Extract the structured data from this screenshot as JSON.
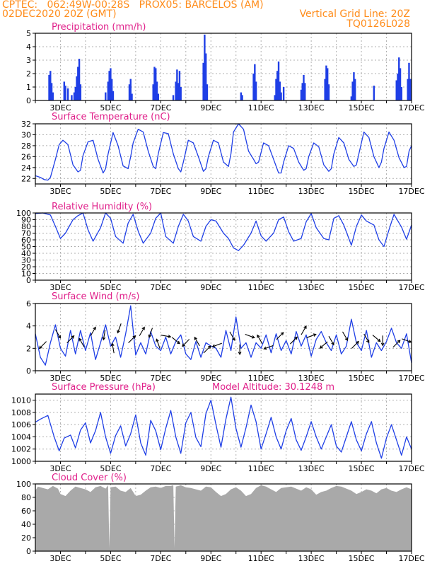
{
  "header": {
    "line1": "CPTEC:   062:49W-00:28S   PROX05: BARCELOS (AM)",
    "line2": "02DEC2020 20Z (GMT)",
    "grid_note": "Vertical Grid Line: 20Z",
    "code": "TQ0126L028"
  },
  "colors": {
    "header": "#ff8c1a",
    "title": "#e0208a",
    "series": "#1f3fe6",
    "cloud": "#a9a9a9",
    "grid": "#b0b0b0"
  },
  "chart_data": [
    {
      "type": "bar",
      "title": "Precipitation (mm/h)",
      "ylim": [
        0,
        5
      ],
      "yticks": [
        0,
        1,
        2,
        3,
        4,
        5
      ],
      "xticks": [
        "3DEC",
        "5DEC",
        "7DEC",
        "9DEC",
        "11DEC",
        "13DEC",
        "15DEC",
        "17DEC"
      ],
      "x_start_day": 2.0,
      "x_end_day": 17.0,
      "bars": [
        [
          2.55,
          1.9
        ],
        [
          2.6,
          2.2
        ],
        [
          2.65,
          1.3
        ],
        [
          2.7,
          0.6
        ],
        [
          3.15,
          1.4
        ],
        [
          3.2,
          1.1
        ],
        [
          3.3,
          0.9
        ],
        [
          3.45,
          0.4
        ],
        [
          3.55,
          0.6
        ],
        [
          3.6,
          1.0
        ],
        [
          3.65,
          1.8
        ],
        [
          3.7,
          2.5
        ],
        [
          3.75,
          3.1
        ],
        [
          3.8,
          1.2
        ],
        [
          4.8,
          0.6
        ],
        [
          4.9,
          1.4
        ],
        [
          4.95,
          2.2
        ],
        [
          5.0,
          2.4
        ],
        [
          5.05,
          1.6
        ],
        [
          5.1,
          0.7
        ],
        [
          5.75,
          1.2
        ],
        [
          5.8,
          1.6
        ],
        [
          5.85,
          0.5
        ],
        [
          6.7,
          1.2
        ],
        [
          6.75,
          2.5
        ],
        [
          6.8,
          2.4
        ],
        [
          6.85,
          1.4
        ],
        [
          6.9,
          0.5
        ],
        [
          7.5,
          0.4
        ],
        [
          7.6,
          1.4
        ],
        [
          7.65,
          2.3
        ],
        [
          7.7,
          1.3
        ],
        [
          7.75,
          2.2
        ],
        [
          7.8,
          1.0
        ],
        [
          8.7,
          2.8
        ],
        [
          8.75,
          4.9
        ],
        [
          8.8,
          3.5
        ],
        [
          8.85,
          1.2
        ],
        [
          10.2,
          0.6
        ],
        [
          10.25,
          0.4
        ],
        [
          10.7,
          2.0
        ],
        [
          10.75,
          2.7
        ],
        [
          10.8,
          1.4
        ],
        [
          11.55,
          0.4
        ],
        [
          11.6,
          1.6
        ],
        [
          11.65,
          2.2
        ],
        [
          11.7,
          2.9
        ],
        [
          11.75,
          1.4
        ],
        [
          11.8,
          0.6
        ],
        [
          11.9,
          1.0
        ],
        [
          12.6,
          0.8
        ],
        [
          12.65,
          1.3
        ],
        [
          12.7,
          1.9
        ],
        [
          12.75,
          1.3
        ],
        [
          13.55,
          1.6
        ],
        [
          13.6,
          2.6
        ],
        [
          13.65,
          2.4
        ],
        [
          13.7,
          1.2
        ],
        [
          14.6,
          0.3
        ],
        [
          14.65,
          1.4
        ],
        [
          14.7,
          2.1
        ],
        [
          14.75,
          1.6
        ],
        [
          15.5,
          1.1
        ],
        [
          16.4,
          1.5
        ],
        [
          16.45,
          2.0
        ],
        [
          16.5,
          3.2
        ],
        [
          16.55,
          2.4
        ],
        [
          16.6,
          1.0
        ],
        [
          16.85,
          1.6
        ],
        [
          16.9,
          2.8
        ],
        [
          16.95,
          1.6
        ]
      ]
    },
    {
      "type": "line",
      "title": "Surface Temperature (nC)",
      "ylim": [
        21,
        32
      ],
      "yticks": [
        22,
        24,
        26,
        28,
        30,
        32
      ],
      "xticks": [
        "3DEC",
        "5DEC",
        "7DEC",
        "9DEC",
        "11DEC",
        "13DEC",
        "15DEC",
        "17DEC"
      ],
      "x_start_day": 2.0,
      "x_end_day": 17.0,
      "x": [
        2.0,
        2.2,
        2.35,
        2.5,
        2.6,
        2.8,
        2.95,
        3.1,
        3.3,
        3.5,
        3.7,
        3.8,
        3.9,
        4.1,
        4.3,
        4.5,
        4.7,
        4.8,
        4.9,
        5.1,
        5.3,
        5.5,
        5.7,
        5.8,
        5.9,
        6.1,
        6.3,
        6.5,
        6.7,
        6.8,
        6.9,
        7.1,
        7.3,
        7.5,
        7.7,
        7.8,
        7.9,
        8.1,
        8.3,
        8.5,
        8.7,
        8.8,
        8.9,
        9.1,
        9.3,
        9.5,
        9.7,
        9.8,
        9.9,
        10.1,
        10.3,
        10.5,
        10.7,
        10.8,
        10.9,
        11.1,
        11.3,
        11.5,
        11.7,
        11.8,
        11.9,
        12.1,
        12.3,
        12.5,
        12.7,
        12.8,
        12.9,
        13.1,
        13.3,
        13.5,
        13.7,
        13.8,
        13.9,
        14.1,
        14.3,
        14.5,
        14.7,
        14.8,
        14.9,
        15.1,
        15.3,
        15.5,
        15.7,
        15.8,
        15.9,
        16.1,
        16.3,
        16.5,
        16.7,
        16.8,
        16.9,
        17.0
      ],
      "values": [
        22.5,
        22.2,
        21.8,
        21.7,
        22.2,
        25.5,
        28.2,
        29.0,
        28.2,
        24.5,
        23.2,
        23.5,
        26.2,
        28.7,
        29.0,
        25.5,
        23.0,
        23.8,
        26.5,
        30.4,
        28.0,
        24.3,
        23.8,
        26.0,
        28.5,
        31.0,
        30.5,
        27.0,
        24.2,
        23.8,
        26.5,
        30.4,
        30.2,
        26.5,
        23.8,
        23.2,
        25.0,
        29.0,
        28.5,
        26.0,
        23.3,
        23.8,
        26.0,
        29.0,
        28.5,
        25.0,
        24.2,
        26.5,
        30.5,
        32.0,
        31.0,
        27.0,
        25.5,
        24.7,
        25.0,
        28.5,
        28.0,
        25.5,
        23.0,
        23.0,
        25.0,
        28.0,
        27.5,
        25.0,
        23.5,
        23.8,
        26.0,
        28.5,
        27.8,
        24.5,
        23.3,
        23.8,
        26.5,
        29.5,
        28.5,
        25.5,
        24.2,
        24.5,
        26.5,
        30.5,
        29.5,
        26.0,
        24.0,
        25.0,
        27.5,
        30.5,
        29.0,
        25.8,
        24.0,
        24.2,
        27.0,
        28.0
      ]
    },
    {
      "type": "line",
      "title": "Relative Humidity (%)",
      "ylim": [
        0,
        100
      ],
      "yticks": [
        0,
        10,
        20,
        30,
        40,
        50,
        60,
        70,
        80,
        90,
        100
      ],
      "xticks": [
        "3DEC",
        "5DEC",
        "7DEC",
        "9DEC",
        "11DEC",
        "13DEC",
        "15DEC",
        "17DEC"
      ],
      "x_start_day": 2.0,
      "x_end_day": 17.0,
      "x": [
        2.0,
        2.3,
        2.6,
        2.8,
        3.0,
        3.2,
        3.5,
        3.7,
        3.9,
        4.1,
        4.3,
        4.6,
        4.8,
        5.0,
        5.2,
        5.5,
        5.7,
        5.9,
        6.1,
        6.3,
        6.6,
        6.8,
        7.0,
        7.2,
        7.5,
        7.7,
        7.9,
        8.1,
        8.3,
        8.6,
        8.8,
        9.0,
        9.2,
        9.5,
        9.7,
        9.9,
        10.1,
        10.3,
        10.6,
        10.8,
        11.0,
        11.2,
        11.5,
        11.7,
        11.9,
        12.1,
        12.3,
        12.6,
        12.8,
        13.0,
        13.2,
        13.5,
        13.7,
        13.9,
        14.1,
        14.3,
        14.6,
        14.8,
        15.0,
        15.2,
        15.5,
        15.7,
        15.9,
        16.1,
        16.3,
        16.6,
        16.8,
        17.0
      ],
      "values": [
        99,
        100,
        97,
        80,
        62,
        70,
        90,
        96,
        100,
        75,
        58,
        78,
        100,
        92,
        65,
        55,
        85,
        98,
        73,
        55,
        70,
        92,
        100,
        65,
        55,
        80,
        98,
        88,
        65,
        58,
        80,
        90,
        88,
        70,
        62,
        48,
        44,
        52,
        70,
        88,
        66,
        58,
        70,
        90,
        94,
        72,
        58,
        62,
        87,
        99,
        78,
        62,
        60,
        92,
        96,
        82,
        52,
        80,
        97,
        88,
        82,
        60,
        50,
        75,
        98,
        79,
        61,
        82
      ]
    },
    {
      "type": "line",
      "title": "Surface Wind (m/s)",
      "ylim": [
        0,
        6
      ],
      "yticks": [
        0,
        2,
        4,
        6
      ],
      "xticks": [
        "3DEC",
        "5DEC",
        "7DEC",
        "9DEC",
        "11DEC",
        "13DEC",
        "15DEC",
        "17DEC"
      ],
      "x_start_day": 2.0,
      "x_end_day": 17.0,
      "x": [
        2.0,
        2.2,
        2.4,
        2.6,
        2.8,
        3.0,
        3.2,
        3.4,
        3.6,
        3.8,
        4.0,
        4.2,
        4.4,
        4.6,
        4.8,
        5.0,
        5.2,
        5.4,
        5.6,
        5.8,
        6.0,
        6.2,
        6.4,
        6.6,
        6.8,
        7.0,
        7.2,
        7.4,
        7.6,
        7.8,
        8.0,
        8.2,
        8.4,
        8.6,
        8.8,
        9.0,
        9.2,
        9.4,
        9.6,
        9.8,
        10.0,
        10.2,
        10.4,
        10.6,
        10.8,
        11.0,
        11.2,
        11.4,
        11.6,
        11.8,
        12.0,
        12.2,
        12.4,
        12.6,
        12.8,
        13.0,
        13.2,
        13.4,
        13.6,
        13.8,
        14.0,
        14.2,
        14.4,
        14.6,
        14.8,
        15.0,
        15.2,
        15.4,
        15.6,
        15.8,
        16.0,
        16.2,
        16.4,
        16.6,
        16.8,
        17.0
      ],
      "values": [
        3.3,
        1.2,
        0.5,
        2.5,
        4.1,
        2.0,
        1.3,
        3.6,
        1.5,
        3.6,
        1.8,
        3.4,
        1.0,
        2.5,
        4.1,
        2.2,
        3.0,
        1.2,
        3.3,
        5.8,
        1.4,
        2.5,
        1.5,
        3.5,
        2.2,
        1.8,
        3.0,
        1.5,
        2.6,
        3.2,
        1.5,
        1.0,
        2.6,
        1.2,
        2.5,
        2.2,
        2.0,
        1.2,
        3.6,
        1.8,
        4.8,
        2.0,
        2.5,
        1.2,
        2.5,
        2.0,
        3.2,
        1.6,
        3.3,
        1.8,
        2.7,
        1.5,
        3.5,
        2.2,
        3.2,
        1.3,
        2.8,
        3.5,
        2.5,
        1.8,
        3.2,
        1.5,
        2.2,
        4.6,
        2.5,
        1.8,
        3.6,
        1.2,
        2.5,
        1.8,
        2.6,
        3.8,
        2.5,
        2.0,
        3.3,
        0.7
      ],
      "arrows": [
        [
          2.3,
          2.3,
          225
        ],
        [
          2.9,
          3.3,
          300
        ],
        [
          3.4,
          2.8,
          45
        ],
        [
          3.85,
          2.5,
          120
        ],
        [
          4.3,
          3.5,
          60
        ],
        [
          4.75,
          3.2,
          260
        ],
        [
          5.1,
          2.0,
          100
        ],
        [
          5.35,
          3.8,
          250
        ],
        [
          5.85,
          2.8,
          45
        ],
        [
          6.25,
          3.5,
          60
        ],
        [
          6.6,
          3.4,
          250
        ],
        [
          6.9,
          2.4,
          110
        ],
        [
          7.2,
          3.1,
          350
        ],
        [
          7.6,
          2.7,
          320
        ],
        [
          8.0,
          2.5,
          225
        ],
        [
          8.45,
          2.6,
          120
        ],
        [
          8.85,
          1.9,
          45
        ],
        [
          9.25,
          2.3,
          200
        ],
        [
          9.85,
          3.1,
          300
        ],
        [
          10.15,
          1.9,
          270
        ],
        [
          10.55,
          3.1,
          340
        ],
        [
          10.95,
          2.8,
          120
        ],
        [
          11.3,
          2.1,
          200
        ],
        [
          11.75,
          3.1,
          45
        ],
        [
          12.3,
          2.7,
          45
        ],
        [
          12.7,
          3.6,
          60
        ],
        [
          13.0,
          3.1,
          20
        ],
        [
          13.5,
          2.3,
          220
        ],
        [
          13.8,
          2.7,
          300
        ],
        [
          14.35,
          3.1,
          300
        ],
        [
          14.75,
          2.3,
          45
        ],
        [
          15.2,
          2.9,
          300
        ],
        [
          15.6,
          2.9,
          320
        ],
        [
          15.85,
          2.7,
          270
        ],
        [
          16.4,
          2.4,
          45
        ],
        [
          16.8,
          2.7,
          340
        ]
      ]
    },
    {
      "type": "line",
      "title": "Surface Pressure (hPa)",
      "annotation": "Model Altitude: 30.1248 m",
      "ylim": [
        1000,
        1011
      ],
      "yticks": [
        1000,
        1002,
        1004,
        1006,
        1008,
        1010
      ],
      "xticks": [
        "3DEC",
        "5DEC",
        "7DEC",
        "9DEC",
        "11DEC",
        "13DEC",
        "15DEC",
        "17DEC"
      ],
      "x_start_day": 2.0,
      "x_end_day": 17.0,
      "x": [
        2.0,
        2.2,
        2.35,
        2.5,
        2.75,
        2.95,
        3.15,
        3.4,
        3.6,
        3.8,
        4.0,
        4.2,
        4.4,
        4.6,
        4.8,
        5.0,
        5.2,
        5.4,
        5.6,
        5.8,
        6.0,
        6.2,
        6.4,
        6.6,
        6.8,
        7.0,
        7.2,
        7.4,
        7.6,
        7.8,
        8.0,
        8.2,
        8.4,
        8.6,
        8.8,
        9.0,
        9.2,
        9.4,
        9.6,
        9.8,
        10.0,
        10.2,
        10.4,
        10.6,
        10.8,
        11.0,
        11.2,
        11.4,
        11.6,
        11.8,
        12.0,
        12.2,
        12.4,
        12.6,
        12.8,
        13.0,
        13.2,
        13.4,
        13.6,
        13.8,
        14.0,
        14.2,
        14.4,
        14.6,
        14.8,
        15.0,
        15.2,
        15.4,
        15.6,
        15.8,
        16.0,
        16.2,
        16.4,
        16.6,
        16.8,
        17.0
      ],
      "values": [
        1006.4,
        1006.9,
        1007.2,
        1007.5,
        1004.0,
        1001.7,
        1003.8,
        1004.3,
        1002.2,
        1005.1,
        1006.3,
        1003.0,
        1005.0,
        1008.0,
        1004.0,
        1001.3,
        1004.2,
        1005.8,
        1002.5,
        1004.5,
        1007.6,
        1003.0,
        1001.0,
        1006.7,
        1005.0,
        1001.9,
        1005.4,
        1008.3,
        1004.0,
        1001.3,
        1006.3,
        1008.0,
        1003.9,
        1002.4,
        1007.8,
        1010.0,
        1006.0,
        1002.3,
        1006.9,
        1010.5,
        1005.4,
        1002.3,
        1005.5,
        1009.2,
        1006.5,
        1002.0,
        1004.5,
        1007.2,
        1004.0,
        1002.0,
        1005.0,
        1007.0,
        1003.5,
        1001.8,
        1004.0,
        1006.5,
        1004.0,
        1002.0,
        1004.0,
        1006.0,
        1002.5,
        1001.5,
        1004.0,
        1006.5,
        1003.5,
        1001.7,
        1004.5,
        1006.5,
        1003.0,
        1000.5,
        1003.8,
        1006.0,
        1003.5,
        1001.0,
        1004.0,
        1002.0
      ]
    },
    {
      "type": "area",
      "title": "Cloud Cover (%)",
      "ylim": [
        0,
        100
      ],
      "yticks": [
        0,
        20,
        40,
        60,
        80,
        100
      ],
      "xticks": [
        "3DEC",
        "5DEC",
        "7DEC",
        "9DEC",
        "11DEC",
        "13DEC",
        "15DEC",
        "17DEC"
      ],
      "x_start_day": 2.0,
      "x_end_day": 17.0,
      "x": [
        2.0,
        2.1,
        2.3,
        2.5,
        2.7,
        2.9,
        3.0,
        3.2,
        3.4,
        3.6,
        3.8,
        4.0,
        4.2,
        4.4,
        4.6,
        4.8,
        4.9,
        4.95,
        5.0,
        5.2,
        5.4,
        5.6,
        5.8,
        6.0,
        6.2,
        6.4,
        6.6,
        6.8,
        7.0,
        7.2,
        7.4,
        7.5,
        7.55,
        7.6,
        7.8,
        8.0,
        8.2,
        8.4,
        8.6,
        8.8,
        9.0,
        9.2,
        9.4,
        9.6,
        9.8,
        10.0,
        10.2,
        10.4,
        10.6,
        10.8,
        11.0,
        11.2,
        11.4,
        11.6,
        11.8,
        12.0,
        12.2,
        12.4,
        12.6,
        12.8,
        13.0,
        13.2,
        13.4,
        13.6,
        13.8,
        14.0,
        14.2,
        14.4,
        14.6,
        14.8,
        15.0,
        15.2,
        15.4,
        15.6,
        15.8,
        16.0,
        16.2,
        16.4,
        16.6,
        16.8,
        17.0
      ],
      "values": [
        90,
        96,
        94,
        92,
        97,
        93,
        85,
        82,
        90,
        96,
        94,
        92,
        88,
        95,
        97,
        93,
        98,
        5,
        95,
        96,
        90,
        88,
        94,
        82,
        84,
        90,
        95,
        96,
        94,
        97,
        97,
        98,
        5,
        96,
        98,
        95,
        94,
        92,
        90,
        96,
        95,
        88,
        82,
        85,
        92,
        95,
        90,
        82,
        85,
        94,
        98,
        96,
        92,
        88,
        94,
        95,
        96,
        93,
        90,
        95,
        92,
        84,
        88,
        90,
        94,
        97,
        96,
        93,
        90,
        85,
        88,
        92,
        90,
        86,
        92,
        94,
        90,
        88,
        92,
        95,
        92
      ]
    }
  ]
}
